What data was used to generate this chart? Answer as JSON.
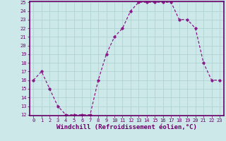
{
  "hours": [
    0,
    1,
    2,
    3,
    4,
    5,
    6,
    7,
    8,
    9,
    10,
    11,
    12,
    13,
    14,
    15,
    16,
    17,
    18,
    19,
    20,
    21,
    22,
    23
  ],
  "values": [
    16,
    17,
    15,
    13,
    12,
    12,
    12,
    12,
    16,
    19,
    21,
    22,
    24,
    25,
    25,
    25,
    25,
    25,
    23,
    23,
    22,
    18,
    16,
    16
  ],
  "line_color": "#8b1a8b",
  "marker": "D",
  "marker_size": 1.8,
  "bg_color": "#cce8e8",
  "grid_color": "#aacfcf",
  "xlabel": "Windchill (Refroidissement éolien,°C)",
  "ylim": [
    12,
    25
  ],
  "xlim": [
    -0.5,
    23.5
  ],
  "yticks": [
    12,
    13,
    14,
    15,
    16,
    17,
    18,
    19,
    20,
    21,
    22,
    23,
    24,
    25
  ],
  "xticks": [
    0,
    1,
    2,
    3,
    4,
    5,
    6,
    7,
    8,
    9,
    10,
    11,
    12,
    13,
    14,
    15,
    16,
    17,
    18,
    19,
    20,
    21,
    22,
    23
  ],
  "tick_fontsize": 5.0,
  "xlabel_fontsize": 6.5,
  "axis_color": "#6a006a",
  "spine_color": "#6a006a",
  "linewidth": 0.9
}
